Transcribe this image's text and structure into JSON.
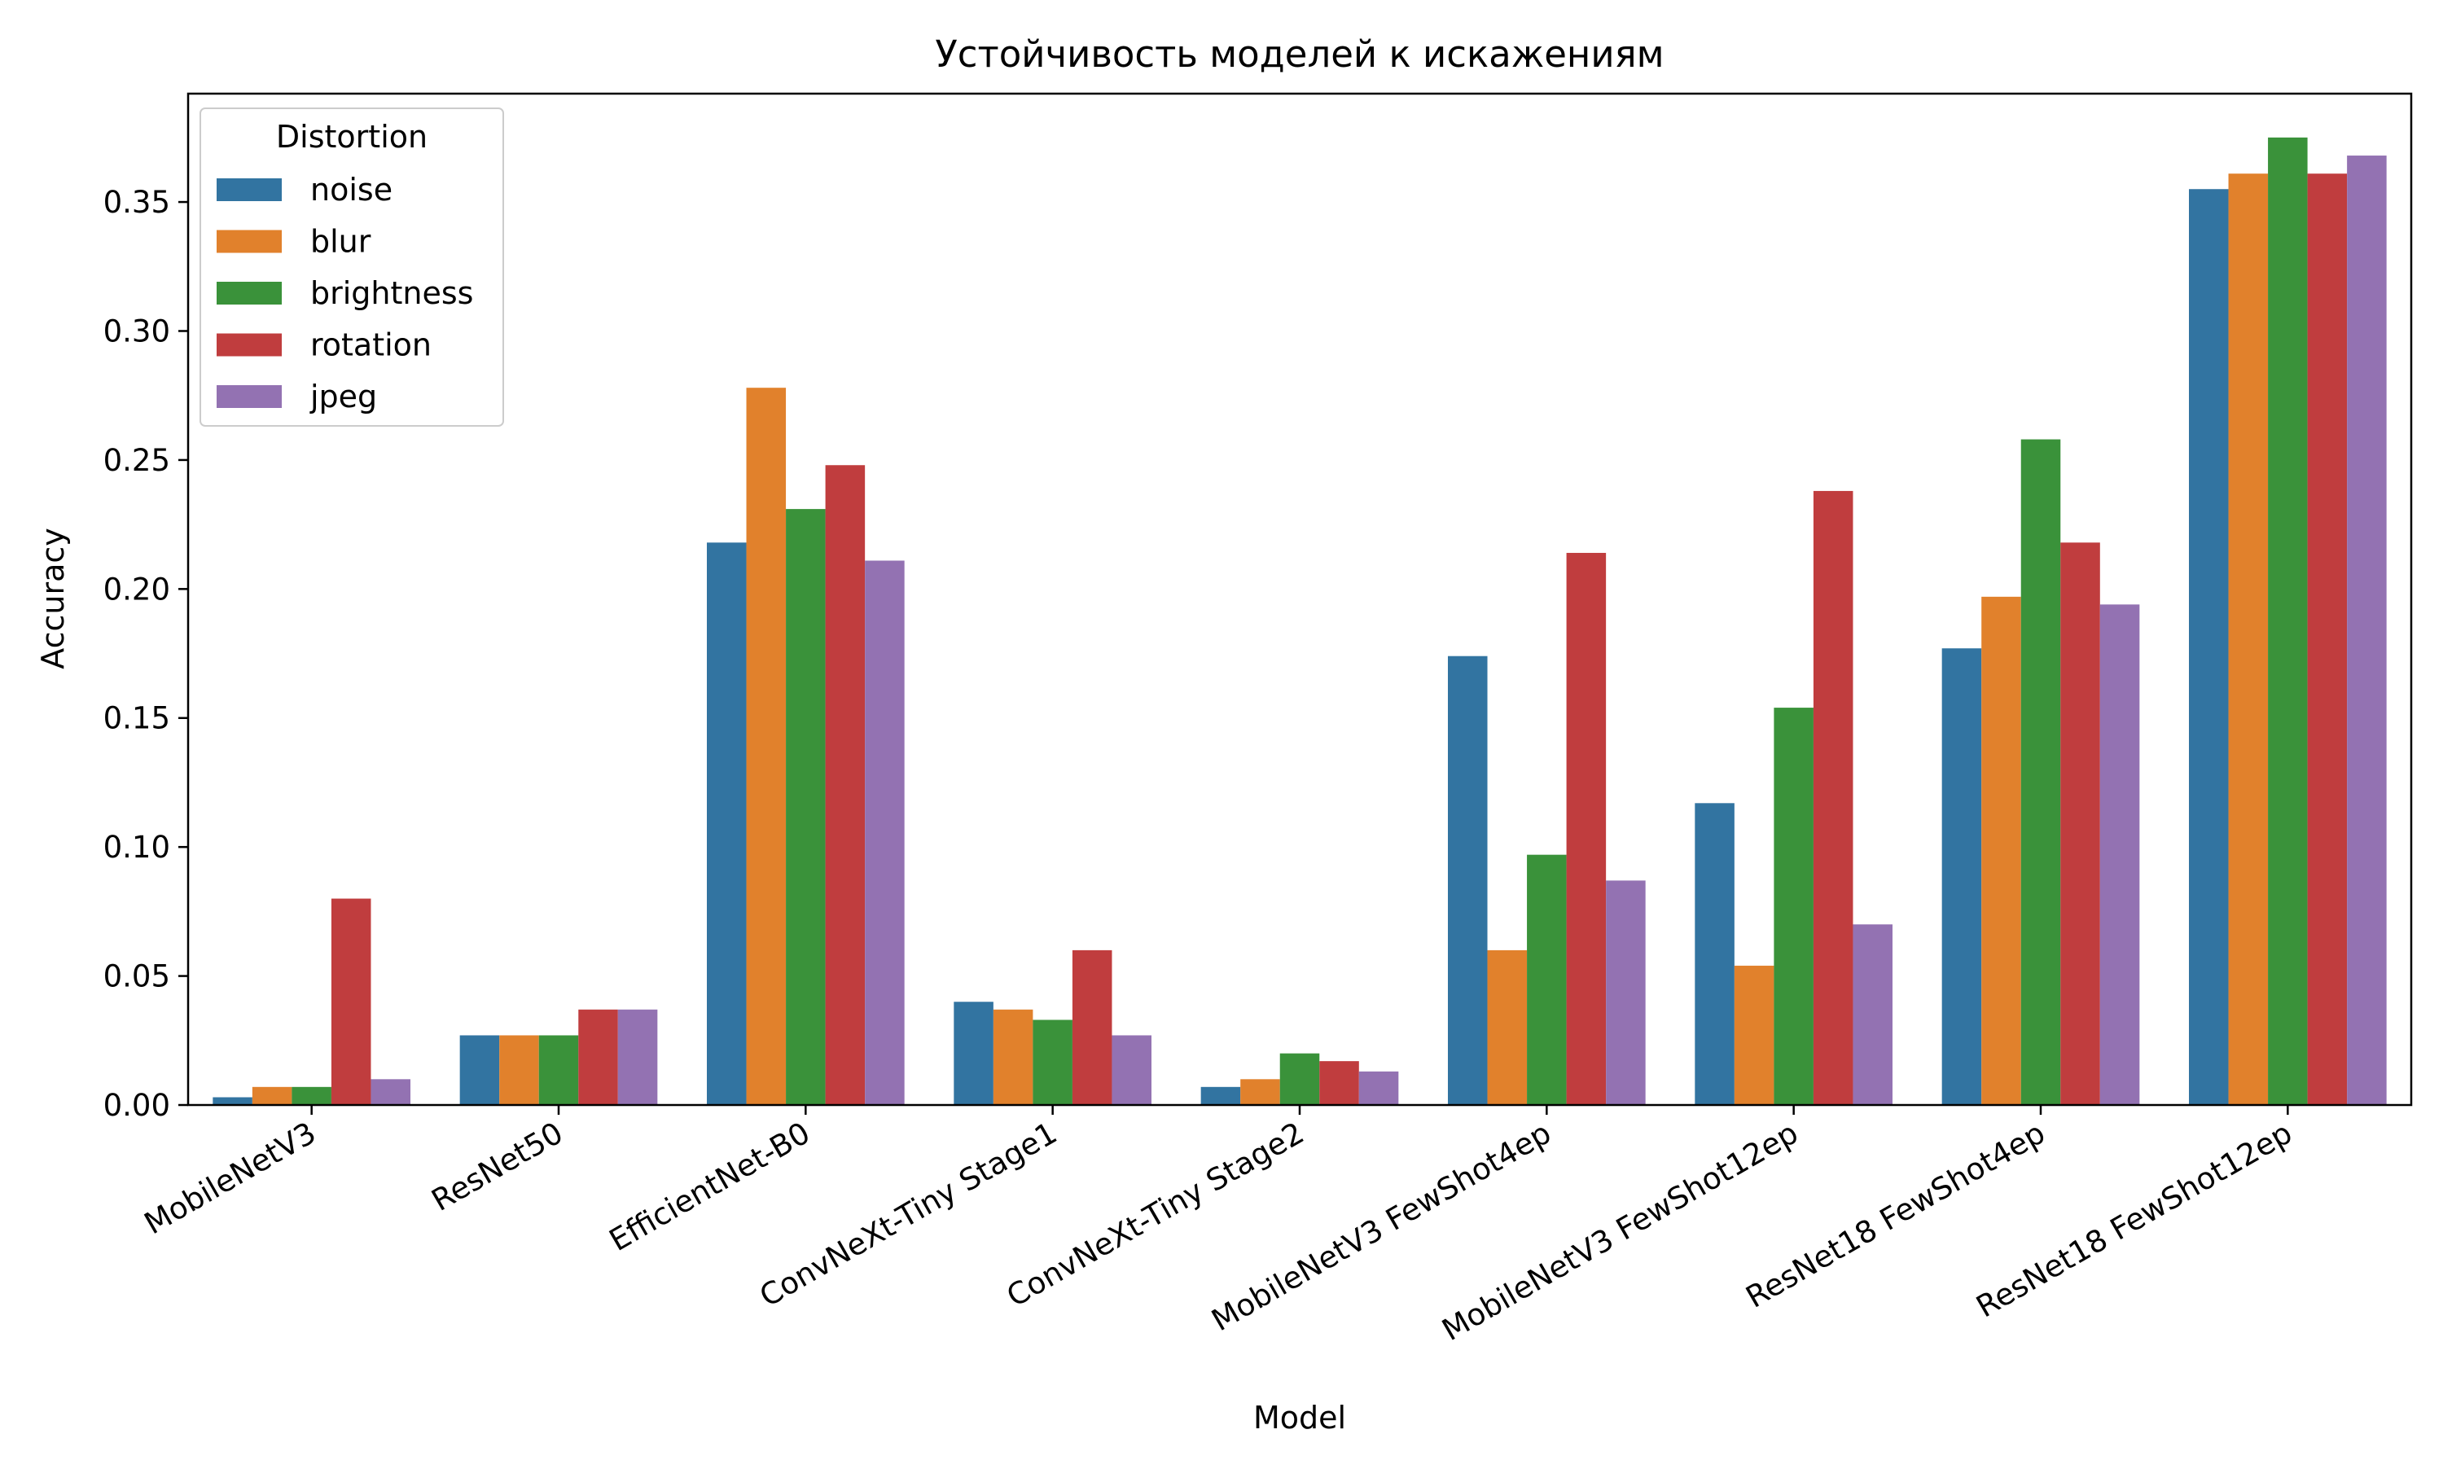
{
  "chart_data": {
    "type": "bar",
    "title": "Устойчивость моделей к искажениям",
    "xlabel": "Model",
    "ylabel": "Accuracy",
    "ylim": [
      0,
      0.392
    ],
    "yticks": [
      0.0,
      0.05,
      0.1,
      0.15,
      0.2,
      0.25,
      0.3,
      0.35
    ],
    "ytick_labels": [
      "0.00",
      "0.05",
      "0.10",
      "0.15",
      "0.20",
      "0.25",
      "0.30",
      "0.35"
    ],
    "grid": false,
    "legend": {
      "title": "Distortion",
      "placement": "top-left"
    },
    "categories": [
      "MobileNetV3",
      "ResNet50",
      "EfficientNet-B0",
      "ConvNeXt-Tiny Stage1",
      "ConvNeXt-Tiny Stage2",
      "MobileNetV3 FewShot4ep",
      "MobileNetV3 FewShot12ep",
      "ResNet18 FewShot4ep",
      "ResNet18 FewShot12ep"
    ],
    "series": [
      {
        "name": "noise",
        "color": "#3274a1",
        "values": [
          0.003,
          0.027,
          0.218,
          0.04,
          0.007,
          0.174,
          0.117,
          0.177,
          0.355
        ]
      },
      {
        "name": "blur",
        "color": "#e1812c",
        "values": [
          0.007,
          0.027,
          0.278,
          0.037,
          0.01,
          0.06,
          0.054,
          0.197,
          0.361
        ]
      },
      {
        "name": "brightness",
        "color": "#3a923a",
        "values": [
          0.007,
          0.027,
          0.231,
          0.033,
          0.02,
          0.097,
          0.154,
          0.258,
          0.375
        ]
      },
      {
        "name": "rotation",
        "color": "#c03d3e",
        "values": [
          0.08,
          0.037,
          0.248,
          0.06,
          0.017,
          0.214,
          0.238,
          0.218,
          0.361
        ]
      },
      {
        "name": "jpeg",
        "color": "#9372b2",
        "values": [
          0.01,
          0.037,
          0.211,
          0.027,
          0.013,
          0.087,
          0.07,
          0.194,
          0.368
        ]
      }
    ]
  }
}
